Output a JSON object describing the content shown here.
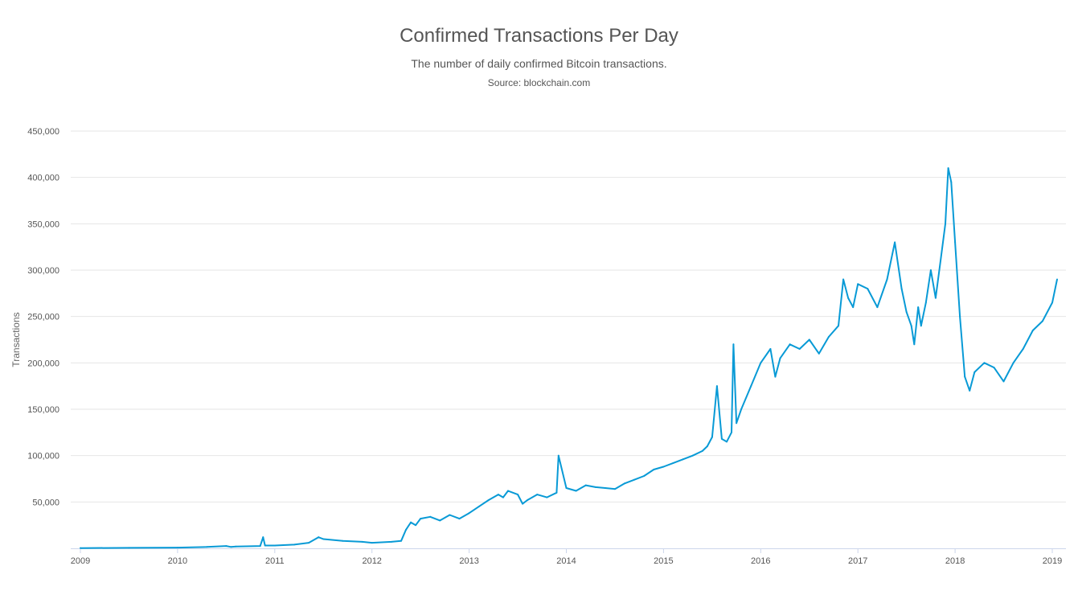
{
  "chart_data": {
    "type": "line",
    "title": "Confirmed Transactions Per Day",
    "subtitle": "The number of daily confirmed Bitcoin transactions.",
    "source": "Source: blockchain.com",
    "xlabel": "",
    "ylabel": "Transactions",
    "ylim": [
      0,
      450000
    ],
    "xlim": [
      2009.0,
      2019.1
    ],
    "grid": true,
    "legend": "none",
    "y_ticks": [
      50000,
      100000,
      150000,
      200000,
      250000,
      300000,
      350000,
      400000,
      450000
    ],
    "y_tick_labels": [
      "50,000",
      "100,000",
      "150,000",
      "200,000",
      "250,000",
      "300,000",
      "350,000",
      "400,000",
      "450,000"
    ],
    "x_ticks": [
      2009,
      2010,
      2011,
      2012,
      2013,
      2014,
      2015,
      2016,
      2017,
      2018,
      2019
    ],
    "x_tick_labels": [
      "2009",
      "2010",
      "2011",
      "2012",
      "2013",
      "2014",
      "2015",
      "2016",
      "2017",
      "2018",
      "2019"
    ],
    "series": [
      {
        "name": "Transactions",
        "color": "#089ad6",
        "x": [
          2009.0,
          2009.5,
          2010.0,
          2010.3,
          2010.5,
          2010.55,
          2010.6,
          2010.85,
          2010.88,
          2010.9,
          2011.0,
          2011.2,
          2011.35,
          2011.45,
          2011.5,
          2011.7,
          2011.9,
          2012.0,
          2012.2,
          2012.3,
          2012.35,
          2012.4,
          2012.45,
          2012.5,
          2012.6,
          2012.7,
          2012.8,
          2012.9,
          2013.0,
          2013.1,
          2013.2,
          2013.3,
          2013.35,
          2013.4,
          2013.5,
          2013.55,
          2013.6,
          2013.7,
          2013.8,
          2013.9,
          2013.92,
          2014.0,
          2014.1,
          2014.2,
          2014.3,
          2014.4,
          2014.5,
          2014.6,
          2014.7,
          2014.8,
          2014.9,
          2015.0,
          2015.1,
          2015.2,
          2015.3,
          2015.4,
          2015.45,
          2015.5,
          2015.55,
          2015.6,
          2015.65,
          2015.7,
          2015.72,
          2015.75,
          2015.8,
          2015.9,
          2016.0,
          2016.1,
          2016.15,
          2016.2,
          2016.3,
          2016.4,
          2016.5,
          2016.6,
          2016.7,
          2016.8,
          2016.85,
          2016.9,
          2016.95,
          2017.0,
          2017.1,
          2017.2,
          2017.3,
          2017.38,
          2017.45,
          2017.5,
          2017.55,
          2017.58,
          2017.62,
          2017.65,
          2017.7,
          2017.75,
          2017.8,
          2017.85,
          2017.9,
          2017.93,
          2017.96,
          2018.0,
          2018.05,
          2018.1,
          2018.15,
          2018.2,
          2018.3,
          2018.4,
          2018.5,
          2018.6,
          2018.7,
          2018.8,
          2018.9,
          2019.0,
          2019.05
        ],
        "values": [
          300,
          500,
          800,
          1500,
          2500,
          1500,
          2000,
          2500,
          12000,
          3000,
          3000,
          4000,
          6000,
          12000,
          10000,
          8000,
          7000,
          6000,
          7000,
          8000,
          20000,
          28000,
          25000,
          32000,
          34000,
          30000,
          36000,
          32000,
          38000,
          45000,
          52000,
          58000,
          55000,
          62000,
          58000,
          48000,
          52000,
          58000,
          55000,
          60000,
          100000,
          65000,
          62000,
          68000,
          66000,
          65000,
          64000,
          70000,
          74000,
          78000,
          85000,
          88000,
          92000,
          96000,
          100000,
          105000,
          110000,
          120000,
          175000,
          118000,
          115000,
          125000,
          220000,
          135000,
          150000,
          175000,
          200000,
          215000,
          185000,
          205000,
          220000,
          215000,
          225000,
          210000,
          228000,
          240000,
          290000,
          270000,
          260000,
          285000,
          280000,
          260000,
          290000,
          330000,
          280000,
          255000,
          240000,
          220000,
          260000,
          240000,
          265000,
          300000,
          270000,
          310000,
          350000,
          410000,
          395000,
          330000,
          250000,
          185000,
          170000,
          190000,
          200000,
          195000,
          180000,
          200000,
          215000,
          235000,
          245000,
          265000,
          290000
        ]
      }
    ]
  }
}
